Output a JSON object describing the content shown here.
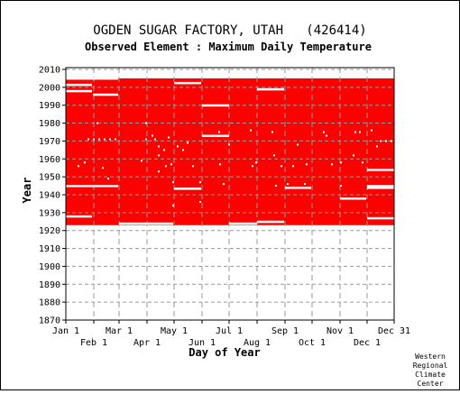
{
  "chart_data": {
    "type": "heatmap",
    "title": "OGDEN SUGAR FACTORY, UTAH   (426414)",
    "subtitle": "Observed Element : Maximum Daily Temperature",
    "xlabel": "Day of Year",
    "ylabel": "Year",
    "credit": [
      "Western",
      "Regional",
      "Climate",
      "Center"
    ],
    "x_ticks_upper": [
      {
        "label": "Jan 1",
        "day": 1
      },
      {
        "label": "Mar 1",
        "day": 60
      },
      {
        "label": "May 1",
        "day": 121
      },
      {
        "label": "Jul 1",
        "day": 182
      },
      {
        "label": "Sep 1",
        "day": 244
      },
      {
        "label": "Nov 1",
        "day": 305
      },
      {
        "label": "Dec 31",
        "day": 365
      }
    ],
    "x_ticks_lower": [
      {
        "label": "Feb 1",
        "day": 32
      },
      {
        "label": "Apr 1",
        "day": 91
      },
      {
        "label": "Jun 1",
        "day": 152
      },
      {
        "label": "Aug 1",
        "day": 213
      },
      {
        "label": "Oct 1",
        "day": 274
      },
      {
        "label": "Dec 1",
        "day": 335
      }
    ],
    "y_ticks": [
      1870,
      1880,
      1890,
      1900,
      1910,
      1920,
      1930,
      1940,
      1950,
      1960,
      1970,
      1980,
      1990,
      2000,
      2010
    ],
    "xlim": [
      1,
      365
    ],
    "ylim": [
      1870,
      2011
    ],
    "grid": true,
    "data_color": "#ff0000",
    "record_blocks": [
      {
        "start_day": 1,
        "end_day": 365,
        "start_year": 1923,
        "end_year": 2005
      }
    ],
    "missing_segments": [
      {
        "year": 2001.5,
        "start_day": 1,
        "end_day": 30
      },
      {
        "year": 1998,
        "start_day": 1,
        "end_day": 30
      },
      {
        "year": 1996,
        "start_day": 31,
        "end_day": 59
      },
      {
        "year": 1945,
        "start_day": 1,
        "end_day": 59
      },
      {
        "year": 1928,
        "start_day": 1,
        "end_day": 30
      },
      {
        "year": 2005,
        "start_day": 1,
        "end_day": 59
      },
      {
        "year": 2002.5,
        "start_day": 121,
        "end_day": 151
      },
      {
        "year": 1990,
        "start_day": 152,
        "end_day": 182
      },
      {
        "year": 1973,
        "start_day": 152,
        "end_day": 182
      },
      {
        "year": 1999,
        "start_day": 213,
        "end_day": 243
      },
      {
        "year": 1943.5,
        "start_day": 121,
        "end_day": 151
      },
      {
        "year": 1944,
        "start_day": 244,
        "end_day": 273
      },
      {
        "year": 1938,
        "start_day": 305,
        "end_day": 334
      },
      {
        "year": 1954,
        "start_day": 335,
        "end_day": 365
      },
      {
        "year": 1945,
        "start_day": 335,
        "end_day": 365
      },
      {
        "year": 1944,
        "start_day": 335,
        "end_day": 365
      },
      {
        "year": 1927,
        "start_day": 335,
        "end_day": 365
      },
      {
        "year": 1924,
        "start_day": 60,
        "end_day": 120
      },
      {
        "year": 1924,
        "start_day": 182,
        "end_day": 213
      },
      {
        "year": 1925,
        "start_day": 213,
        "end_day": 243
      }
    ],
    "missing_points": [
      {
        "day": 90,
        "year": 1980
      },
      {
        "day": 90,
        "year": 1971
      },
      {
        "day": 85,
        "year": 1959
      },
      {
        "day": 97,
        "year": 1973
      },
      {
        "day": 100,
        "year": 1971
      },
      {
        "day": 104,
        "year": 1967
      },
      {
        "day": 104,
        "year": 1962
      },
      {
        "day": 104,
        "year": 1953
      },
      {
        "day": 110,
        "year": 1965
      },
      {
        "day": 112,
        "year": 1956
      },
      {
        "day": 115,
        "year": 1972
      },
      {
        "day": 118,
        "year": 1957
      },
      {
        "day": 120,
        "year": 1947
      },
      {
        "day": 120,
        "year": 1934
      },
      {
        "day": 125,
        "year": 1967
      },
      {
        "day": 131,
        "year": 1965
      },
      {
        "day": 136,
        "year": 1969
      },
      {
        "day": 142,
        "year": 1956
      },
      {
        "day": 150,
        "year": 1947
      },
      {
        "day": 150,
        "year": 1936
      },
      {
        "day": 171,
        "year": 1975
      },
      {
        "day": 172,
        "year": 1957
      },
      {
        "day": 176,
        "year": 1946
      },
      {
        "day": 182,
        "year": 1968
      },
      {
        "day": 206,
        "year": 1976
      },
      {
        "day": 208,
        "year": 1956
      },
      {
        "day": 212,
        "year": 1958
      },
      {
        "day": 230,
        "year": 1975
      },
      {
        "day": 232,
        "year": 1962
      },
      {
        "day": 234,
        "year": 1945
      },
      {
        "day": 240,
        "year": 1956
      },
      {
        "day": 247,
        "year": 1946
      },
      {
        "day": 253,
        "year": 1956
      },
      {
        "day": 258,
        "year": 1968
      },
      {
        "day": 266,
        "year": 1946
      },
      {
        "day": 268,
        "year": 1957
      },
      {
        "day": 287,
        "year": 1975
      },
      {
        "day": 290,
        "year": 1973
      },
      {
        "day": 296,
        "year": 1957
      },
      {
        "day": 306,
        "year": 1945
      },
      {
        "day": 306,
        "year": 1958
      },
      {
        "day": 320,
        "year": 1962
      },
      {
        "day": 322,
        "year": 1975
      },
      {
        "day": 327,
        "year": 1975
      },
      {
        "day": 330,
        "year": 1958
      },
      {
        "day": 340,
        "year": 1976
      },
      {
        "day": 346,
        "year": 1967
      },
      {
        "day": 350,
        "year": 1970
      },
      {
        "day": 356,
        "year": 1970
      },
      {
        "day": 362,
        "year": 1970
      },
      {
        "day": 15,
        "year": 1956
      },
      {
        "day": 22,
        "year": 1958
      },
      {
        "day": 36,
        "year": 1980
      },
      {
        "day": 42,
        "year": 1955
      },
      {
        "day": 48,
        "year": 1949
      },
      {
        "day": 53,
        "year": 1945
      },
      {
        "day": 26,
        "year": 1971
      },
      {
        "day": 32,
        "year": 1971
      },
      {
        "day": 38,
        "year": 1971
      },
      {
        "day": 44,
        "year": 1971
      },
      {
        "day": 50,
        "year": 1971
      },
      {
        "day": 56,
        "year": 1971
      }
    ]
  }
}
